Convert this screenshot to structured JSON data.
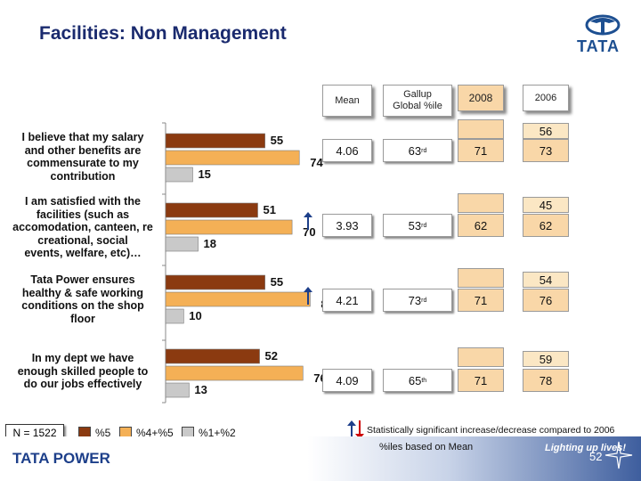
{
  "title": "Facilities: Non Management",
  "logo_text": "TATA",
  "headers": {
    "mean": "Mean",
    "gallup_line1": "Gallup",
    "gallup_line2": "Global %ile",
    "y2008": "2008",
    "y2006": "2006"
  },
  "chart_data": {
    "type": "bar",
    "orientation": "horizontal",
    "categories": [
      "I believe that my salary and other benefits are commensurate to my contribution",
      "I am satisfied with the facilities (such as accomodation, canteen, re creational, social events, welfare, etc)...",
      "Tata Power ensures healthy & safe working conditions on the shop floor",
      "In my dept we have enough skilled people to do our jobs effectively"
    ],
    "series": [
      {
        "name": "%5",
        "color": "#8b3a10",
        "values": [
          55,
          51,
          55,
          52
        ]
      },
      {
        "name": "%4+%5",
        "color": "#f4b056",
        "values": [
          74,
          70,
          80,
          76
        ]
      },
      {
        "name": "%1+%2",
        "color": "#c9c9c9",
        "values": [
          15,
          18,
          10,
          13
        ]
      }
    ],
    "xlim": [
      0,
      100
    ]
  },
  "question_lines": [
    [
      "I believe that my salary",
      "and other benefits are",
      "commensurate to my",
      "contribution"
    ],
    [
      "I am satisfied with the",
      "facilities (such as",
      "accomodation, canteen, re",
      "creational, social",
      "events, welfare, etc)…"
    ],
    [
      "Tata Power ensures",
      "healthy & safe working",
      "conditions on the shop",
      "floor"
    ],
    [
      "In my dept we have",
      "enough skilled people to",
      "do our jobs effectively"
    ]
  ],
  "rows": [
    {
      "mean": "4.06",
      "pctl_num": "63",
      "pctl_suf": "rd",
      "y2008": "71",
      "y2006": "73",
      "y2006_pct5": "56",
      "trend": ""
    },
    {
      "mean": "3.93",
      "pctl_num": "53",
      "pctl_suf": "rd",
      "y2008": "62",
      "y2006": "62",
      "y2006_pct5": "45",
      "trend": "up"
    },
    {
      "mean": "4.21",
      "pctl_num": "73",
      "pctl_suf": "rd",
      "y2008": "71",
      "y2006": "76",
      "y2006_pct5": "54",
      "trend": "up"
    },
    {
      "mean": "4.09",
      "pctl_num": "65",
      "pctl_suf": "th",
      "y2008": "71",
      "y2006": "78",
      "y2006_pct5": "59",
      "trend": ""
    }
  ],
  "legend": {
    "n_label": "N = 1522",
    "items": [
      "%5",
      "%4+%5",
      "%1+%2"
    ]
  },
  "notes": {
    "stat": "Statistically significant increase/decrease compared to 2006",
    "iles": "%iles based on Mean"
  },
  "footer": {
    "brand": "TATA POWER",
    "tagline": "Lighting up lives!",
    "page": "52"
  },
  "colors": {
    "title": "#1a2a6e",
    "pct5": "#8b3a10",
    "pct45": "#f4b056",
    "pct12": "#c9c9c9",
    "peach": "#f9d7a8",
    "up_arrow": "#1d3f8a",
    "down_arrow": "#cc0000"
  }
}
